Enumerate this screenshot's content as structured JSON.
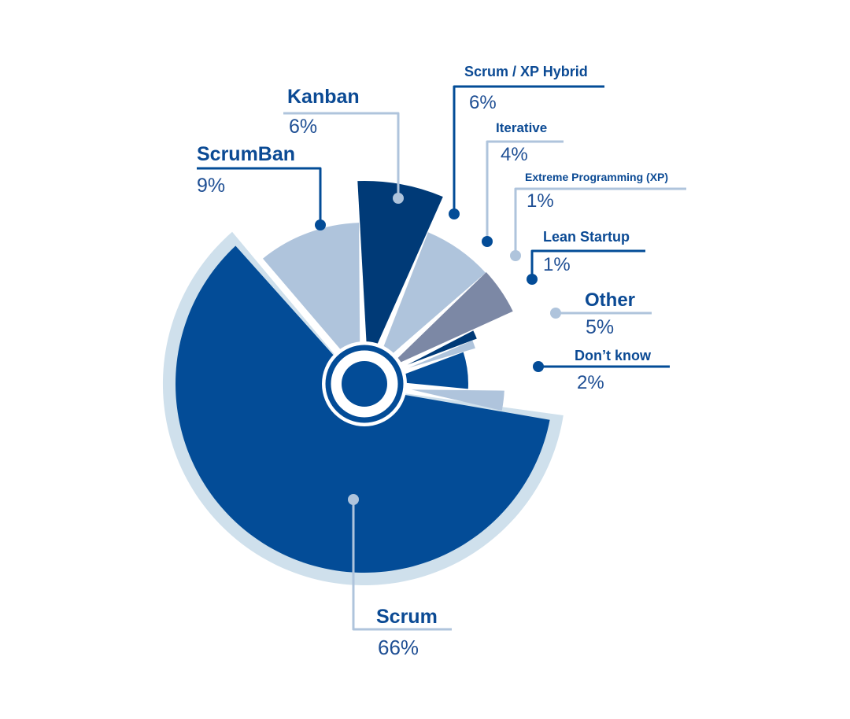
{
  "chart_data": {
    "type": "pie",
    "title": "",
    "slices": [
      {
        "label": "Scrum",
        "value": 66,
        "display": "66%",
        "color": "#034c97"
      },
      {
        "label": "ScrumBan",
        "value": 9,
        "display": "9%",
        "color": "#afc4dc"
      },
      {
        "label": "Kanban",
        "value": 6,
        "display": "6%",
        "color": "#003a77"
      },
      {
        "label": "Scrum / XP Hybrid",
        "value": 6,
        "display": "6%",
        "color": "#afc4dc"
      },
      {
        "label": "Iterative",
        "value": 4,
        "display": "4%",
        "color": "#7c88a5"
      },
      {
        "label": "Extreme Programming (XP)",
        "value": 1,
        "display": "1%",
        "color": "#003a77"
      },
      {
        "label": "Lean Startup",
        "value": 1,
        "display": "1%",
        "color": "#afc4dc"
      },
      {
        "label": "Other",
        "value": 5,
        "display": "5%",
        "color": "#034c97"
      },
      {
        "label": "Don’t know",
        "value": 2,
        "display": "2%",
        "color": "#afc4dc"
      }
    ],
    "colors": {
      "halo": "#cfe0ec",
      "hub": "#034c97",
      "leader_dark": "#034c97",
      "leader_light": "#afc4dc"
    }
  }
}
